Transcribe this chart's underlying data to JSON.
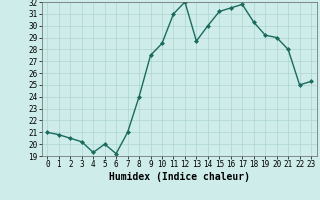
{
  "title": "",
  "xlabel": "Humidex (Indice chaleur)",
  "x": [
    0,
    1,
    2,
    3,
    4,
    5,
    6,
    7,
    8,
    9,
    10,
    11,
    12,
    13,
    14,
    15,
    16,
    17,
    18,
    19,
    20,
    21,
    22,
    23
  ],
  "y": [
    21.0,
    20.8,
    20.5,
    20.2,
    19.3,
    20.0,
    19.2,
    21.0,
    24.0,
    27.5,
    28.5,
    31.0,
    32.0,
    28.7,
    30.0,
    31.2,
    31.5,
    31.8,
    30.3,
    29.2,
    29.0,
    28.0,
    25.0,
    25.3
  ],
  "line_color": "#1a6b5e",
  "marker": "D",
  "markersize": 2,
  "linewidth": 1.0,
  "ylim": [
    19,
    32
  ],
  "xlim": [
    -0.5,
    23.5
  ],
  "yticks": [
    19,
    20,
    21,
    22,
    23,
    24,
    25,
    26,
    27,
    28,
    29,
    30,
    31,
    32
  ],
  "xticks": [
    0,
    1,
    2,
    3,
    4,
    5,
    6,
    7,
    8,
    9,
    10,
    11,
    12,
    13,
    14,
    15,
    16,
    17,
    18,
    19,
    20,
    21,
    22,
    23
  ],
  "bg_color": "#ceecea",
  "grid_color": "#aed4d0",
  "tick_fontsize": 5.5,
  "xlabel_fontsize": 7,
  "xlabel_fontweight": "bold"
}
